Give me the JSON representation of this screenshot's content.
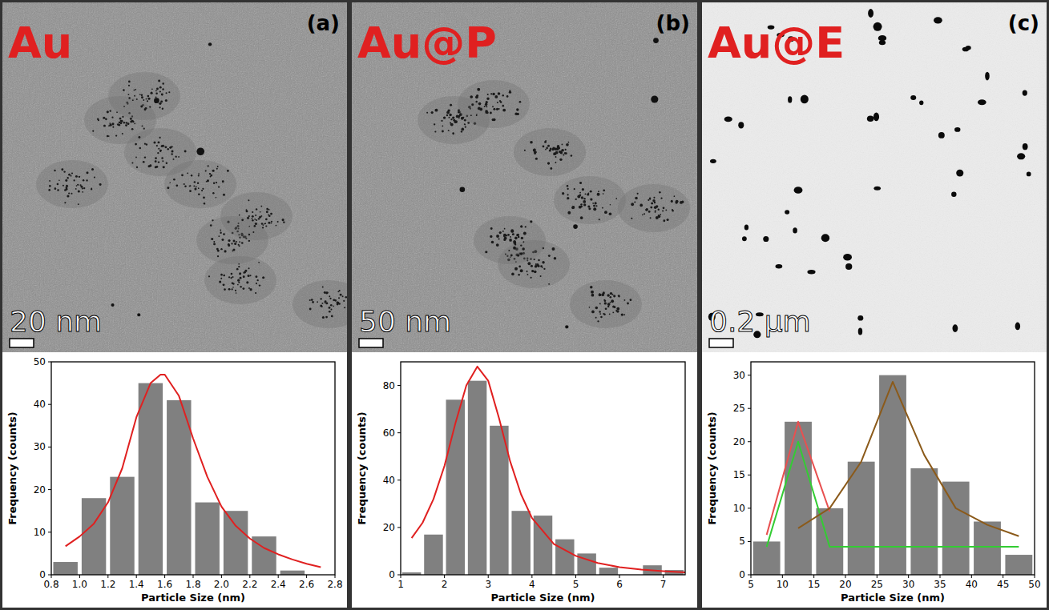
{
  "micrographs": [
    {
      "label": "Au",
      "panel": "(a)",
      "scale_bar": "20 nm"
    },
    {
      "label": "Au@P",
      "panel": "(b)",
      "scale_bar": "50 nm"
    },
    {
      "label": "Au@E",
      "panel": "(c)",
      "scale_bar": "0.2 µm"
    }
  ],
  "chart_data": [
    {
      "type": "histogram",
      "x_label": "Particle Size (nm)",
      "y_label": "Frequency (counts)",
      "color": "#808080",
      "bins": [
        0.8,
        1.0,
        1.2,
        1.4,
        1.6,
        1.8,
        2.0,
        2.2,
        2.4,
        2.6
      ],
      "values": [
        3,
        18,
        23,
        45,
        41,
        17,
        15,
        9,
        1
      ],
      "xlim": [
        0.8,
        2.8
      ],
      "xticks": [
        0.8,
        {
          "value": 1,
          "label": "1.0"
        },
        1.2,
        1.4,
        1.6,
        1.8,
        {
          "value": 2,
          "label": "2.0"
        },
        2.2,
        2.4,
        2.6,
        2.8
      ],
      "ylim": [
        0,
        50
      ],
      "yticks": [
        0,
        10,
        20,
        30,
        40,
        50
      ],
      "series": [
        {
          "type": "line",
          "color": "#e02020",
          "x": [
            0.9,
            1.0,
            1.1,
            1.2,
            1.3,
            1.4,
            1.5,
            1.57,
            1.6,
            1.7,
            1.8,
            1.9,
            2.0,
            2.1,
            2.2,
            2.3,
            2.4,
            2.5,
            2.6,
            2.7
          ],
          "values": [
            6.7,
            9,
            12,
            17,
            25,
            37,
            45,
            47,
            47,
            42,
            32,
            23,
            16,
            11.5,
            8.5,
            6.3,
            4.8,
            3.6,
            2.6,
            1.8
          ]
        }
      ]
    },
    {
      "type": "histogram",
      "x_label": "Particle Size (nm)",
      "y_label": "Frequency (counts)",
      "color": "#808080",
      "bins": [
        1,
        1.5,
        2,
        2.5,
        3,
        3.5,
        4,
        4.5,
        5,
        5.5,
        6,
        6.5,
        7,
        7.5
      ],
      "values": [
        1,
        17,
        74,
        82,
        63,
        27,
        25,
        15,
        9,
        3,
        0,
        4,
        2
      ],
      "xlim": [
        1,
        7.5
      ],
      "xticks": [
        1,
        2,
        3,
        4,
        5,
        6,
        7
      ],
      "ylim": [
        0,
        90
      ],
      "yticks": [
        0,
        20,
        40,
        60,
        80
      ],
      "series": [
        {
          "type": "line",
          "color": "#e02020",
          "x": [
            1.25,
            1.5,
            1.75,
            2.0,
            2.25,
            2.5,
            2.75,
            3.0,
            3.25,
            3.5,
            3.75,
            4.0,
            4.5,
            5.0,
            5.5,
            6.0,
            6.5,
            7.0,
            7.5
          ],
          "values": [
            15.5,
            22,
            32,
            46,
            64,
            80,
            88,
            82,
            66,
            48,
            34,
            24,
            13,
            8,
            5,
            3.2,
            2.2,
            1.5,
            1
          ]
        }
      ]
    },
    {
      "type": "histogram",
      "x_label": "Particle Size (nm)",
      "y_label": "Frequency (counts)",
      "color": "#808080",
      "bins": [
        5,
        10,
        15,
        20,
        25,
        30,
        35,
        40,
        45,
        50
      ],
      "values": [
        5,
        23,
        10,
        17,
        30,
        16,
        14,
        8,
        3
      ],
      "xlim": [
        5,
        50
      ],
      "xticks": [
        5,
        10,
        15,
        20,
        25,
        30,
        35,
        40,
        45,
        50
      ],
      "ylim": [
        0,
        32
      ],
      "yticks": [
        0,
        5,
        10,
        15,
        20,
        25,
        30
      ],
      "series": [
        {
          "type": "line",
          "color": "#e85050",
          "x": [
            7.5,
            12.5,
            17.5
          ],
          "values": [
            6,
            23,
            9.5
          ]
        },
        {
          "type": "line",
          "color": "#33cc33",
          "x": [
            7.5,
            12.5,
            17.5,
            22.5,
            27.5,
            32.5,
            37.5,
            42.5,
            47.5
          ],
          "values": [
            4.2,
            20,
            4.2,
            4.2,
            4.2,
            4.2,
            4.2,
            4.2,
            4.2
          ]
        },
        {
          "type": "line",
          "color": "#8b5a1a",
          "x": [
            12.5,
            17.5,
            22.5,
            27.5,
            32.5,
            37.5,
            42.5,
            47.5
          ],
          "values": [
            7,
            10,
            17,
            29,
            18,
            10,
            7.5,
            5.8
          ]
        }
      ]
    }
  ]
}
